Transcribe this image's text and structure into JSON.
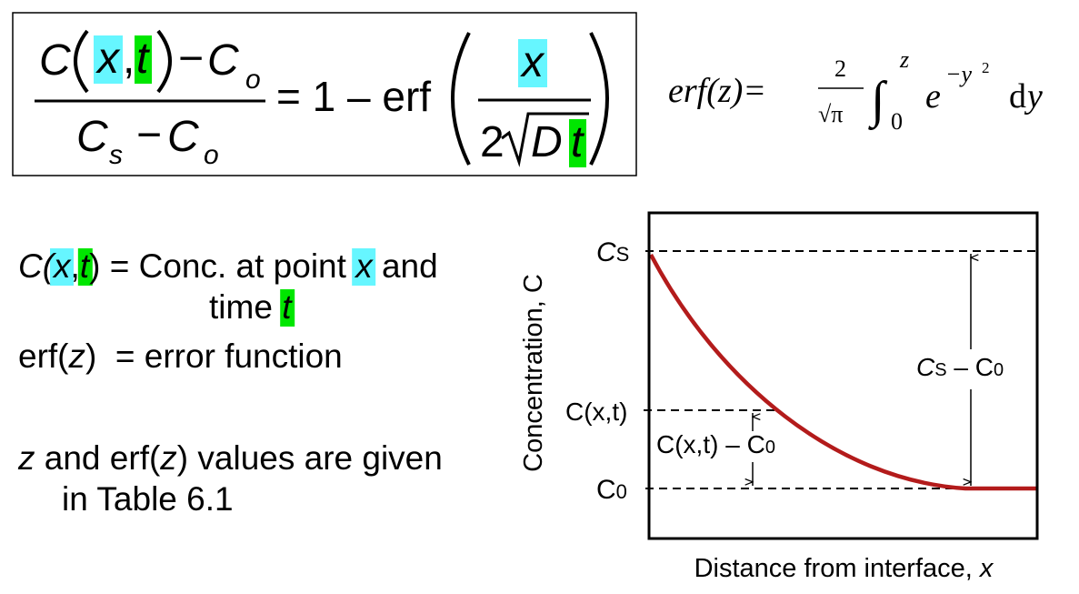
{
  "equation": {
    "numerator": [
      "C",
      "x",
      ",",
      "t",
      "−",
      "C",
      "o"
    ],
    "denominator": [
      "C",
      "s",
      "−",
      "C",
      "o"
    ],
    "rhs": "= 1 – erf",
    "argument": {
      "numerator": "x",
      "denominator": [
        "2",
        "D",
        "t"
      ]
    }
  },
  "erf_definition": {
    "lhs": "erf(z)=",
    "factor": [
      "2",
      "√π"
    ],
    "integral": [
      "∫",
      "z",
      "0"
    ],
    "integrand": [
      "e",
      "−y",
      "2"
    ],
    "differential": [
      "d",
      "y"
    ]
  },
  "definitions": [
    [
      "C(",
      "x",
      ",",
      "t",
      ") = Conc. at point ",
      "x",
      " and"
    ],
    [
      "time ",
      "t"
    ],
    [
      "erf(",
      "z",
      ")  = error function"
    ],
    [
      "z",
      " and erf(",
      "z",
      ") values are given"
    ],
    [
      "in Table 6.1"
    ]
  ],
  "diagram": {
    "y_axis_label": "Concentration, C",
    "x_axis_label": [
      "Distance from interface, ",
      "x"
    ],
    "levels": {
      "surface": [
        "C",
        "S"
      ],
      "point": "C(x,t)",
      "initial": [
        "C",
        "0"
      ]
    },
    "spans": {
      "total": [
        "C",
        "S",
        " – ",
        "C",
        "0"
      ],
      "partial": [
        "C(x,t)",
        " – ",
        "C",
        "0"
      ]
    }
  }
}
